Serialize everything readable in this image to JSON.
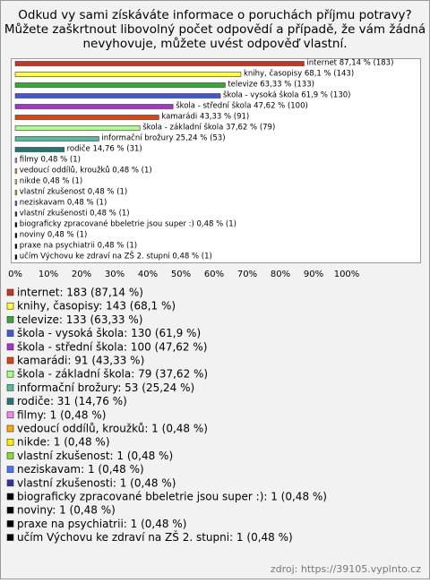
{
  "chart_data": {
    "type": "barh",
    "title_lines": [
      "Odkud vy sami získáváte informace o poruchách příjmu potravy?",
      "Můžete zaškrtnout libovolný počet odpovědí a případě, že vám žádná",
      "nevyhovuje, můžete uvést odpověď vlastní."
    ],
    "categories": [
      "internet",
      "knihy, časopisy",
      "televize",
      "škola - vysoká škola",
      "škola - střední škola",
      "kamarádi",
      "škola - základní škola",
      "informační brožury",
      "rodiče",
      "filmy",
      "vedoucí oddílů, kroužků",
      "nikde",
      "vlastní zkušenost",
      "neziskavam",
      "vlastní zkušenosti",
      "biograficky zpracované bbeletrie jsou super :)",
      "noviny",
      "praxe na psychiatrii",
      "učím Výchovu ke zdraví na ZŠ 2. stupni"
    ],
    "values": [
      87.14,
      68.1,
      63.33,
      61.9,
      47.62,
      43.33,
      37.62,
      25.24,
      14.76,
      0.48,
      0.48,
      0.48,
      0.48,
      0.48,
      0.48,
      0.48,
      0.48,
      0.48,
      0.48
    ],
    "value_labels": [
      "internet 87,14 % (183)",
      "knihy, časopisy 68,1 % (143)",
      "televize 63,33 % (133)",
      "škola - vysoká škola 61,9 % (130)",
      "škola - střední škola 47,62 % (100)",
      "kamarádi 43,33 % (91)",
      "škola - základní škola 37,62 % (79)",
      "informační brožury 25,24 % (53)",
      "rodiče 14,76 % (31)",
      "filmy 0,48 % (1)",
      "vedoucí oddílů, kroužků 0,48 % (1)",
      "nikde 0,48 % (1)",
      "vlastní zkušenost 0,48 % (1)",
      "neziskavam 0,48 % (1)",
      "vlastní zkušenosti 0,48 % (1)",
      "biograficky zpracované bbeletrie jsou super :) 0,48 % (1)",
      "noviny 0,48 % (1)",
      "praxe na psychiatrii 0,48 % (1)",
      "učím Výchovu ke zdraví na ZŠ 2. stupni 0,48 % (1)"
    ],
    "legend_labels": [
      "internet: 183 (87,14 %)",
      "knihy, časopisy: 143 (68,1 %)",
      "televize: 133 (63,33 %)",
      "škola - vysoká škola: 130 (61,9 %)",
      "škola - střední škola: 100 (47,62 %)",
      "kamarádi: 91 (43,33 %)",
      "škola - základní škola: 79 (37,62 %)",
      "informační brožury: 53 (25,24 %)",
      "rodiče: 31 (14,76 %)",
      "filmy: 1 (0,48 %)",
      "vedoucí oddílů, kroužků: 1 (0,48 %)",
      "nikde: 1 (0,48 %)",
      "vlastní zkušenost: 1 (0,48 %)",
      "neziskavam: 1 (0,48 %)",
      "vlastní zkušenosti: 1 (0,48 %)",
      "biograficky zpracované bbeletrie jsou super :): 1 (0,48 %)",
      "noviny: 1 (0,48 %)",
      "praxe na psychiatrii: 1 (0,48 %)",
      "učím Výchovu ke zdraví na ZŠ 2. stupni: 1 (0,48 %)"
    ],
    "colors": [
      "#cc3322",
      "#ffff33",
      "#33aa33",
      "#4455dd",
      "#aa33cc",
      "#dd4411",
      "#aaff88",
      "#55bb99",
      "#227777",
      "#ee88ee",
      "#ffaa00",
      "#ffee00",
      "#88dd33",
      "#4477ff",
      "#333399",
      "#000000",
      "#000000",
      "#000000",
      "#000000"
    ],
    "xlim": [
      0,
      100
    ],
    "xticks": [
      {
        "value": 0,
        "label": "0%"
      },
      {
        "value": 10,
        "label": "10%"
      },
      {
        "value": 20,
        "label": "20%"
      },
      {
        "value": 30,
        "label": "30%"
      },
      {
        "value": 40,
        "label": "40%"
      },
      {
        "value": 50,
        "label": "50%"
      },
      {
        "value": 60,
        "label": "60%"
      },
      {
        "value": 70,
        "label": "70%"
      },
      {
        "value": 80,
        "label": "80%"
      },
      {
        "value": 90,
        "label": "90%"
      },
      {
        "value": 100,
        "label": "100%"
      }
    ],
    "grid": false,
    "source": "zdroj: https://39105.vyplnto.cz"
  }
}
